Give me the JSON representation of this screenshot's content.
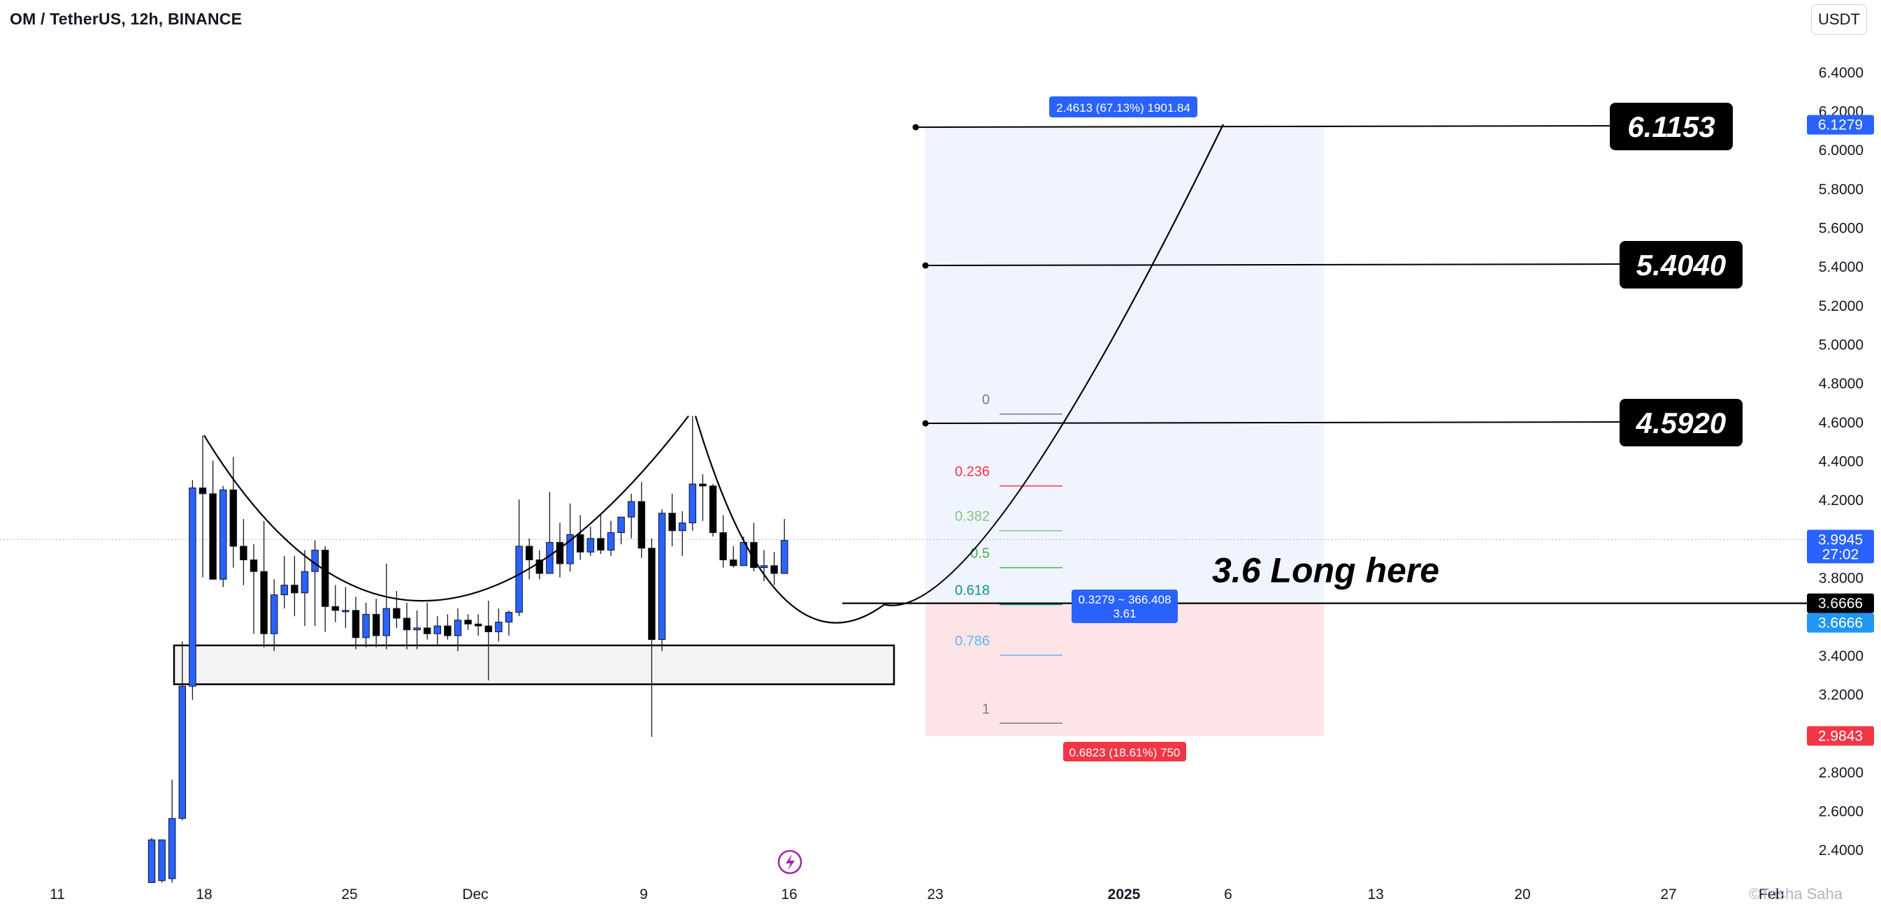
{
  "header": {
    "symbol": "OM / TetherUS, 12h, BINANCE",
    "currency": "USDT"
  },
  "watermark": "©Trisha Saha",
  "chart_data": {
    "type": "candlestick",
    "title": "OM / TetherUS, 12h, BINANCE",
    "ylim": [
      2.3,
      6.5
    ],
    "price_ticks": [
      "6.4000",
      "6.2000",
      "6.0000",
      "5.8000",
      "5.6000",
      "5.4000",
      "5.2000",
      "5.0000",
      "4.8000",
      "4.6000",
      "4.4000",
      "4.2000",
      "3.8000",
      "3.4000",
      "3.2000",
      "2.8000",
      "2.6000",
      "2.4000"
    ],
    "date_ticks": [
      "11",
      "18",
      "25",
      "Dec",
      "9",
      "16",
      "23",
      "2025",
      "6",
      "13",
      "20",
      "27",
      "Feb"
    ],
    "price_labels": [
      {
        "value": 6.1279,
        "text": "6.1279",
        "color": "#2962ff"
      },
      {
        "value": 3.9945,
        "text": "3.9945",
        "sub": "27:02",
        "color": "#2962ff"
      },
      {
        "value": 3.6666,
        "text": "3.6666",
        "color": "#000000"
      },
      {
        "value": 3.6666,
        "text": "3.6666",
        "color": "#2196f3"
      },
      {
        "value": 2.9843,
        "text": "2.9843",
        "color": "#f23645"
      }
    ],
    "candles": [
      {
        "o": 2.23,
        "h": 2.46,
        "l": 2.23,
        "c": 2.45
      },
      {
        "o": 2.24,
        "h": 2.45,
        "l": 2.23,
        "c": 2.45
      },
      {
        "o": 2.25,
        "h": 2.76,
        "l": 2.23,
        "c": 2.56
      },
      {
        "o": 2.56,
        "h": 3.47,
        "l": 2.55,
        "c": 3.24
      },
      {
        "o": 3.24,
        "h": 4.3,
        "l": 3.17,
        "c": 4.26
      },
      {
        "o": 4.26,
        "h": 4.53,
        "l": 3.8,
        "c": 4.23
      },
      {
        "o": 4.23,
        "h": 4.4,
        "l": 3.8,
        "c": 3.79
      },
      {
        "o": 3.79,
        "h": 4.27,
        "l": 3.75,
        "c": 4.25
      },
      {
        "o": 4.25,
        "h": 4.42,
        "l": 3.85,
        "c": 3.96
      },
      {
        "o": 3.96,
        "h": 4.1,
        "l": 3.76,
        "c": 3.89
      },
      {
        "o": 3.89,
        "h": 3.97,
        "l": 3.51,
        "c": 3.83
      },
      {
        "o": 3.83,
        "h": 4.09,
        "l": 3.44,
        "c": 3.51
      },
      {
        "o": 3.51,
        "h": 3.79,
        "l": 3.42,
        "c": 3.71
      },
      {
        "o": 3.71,
        "h": 3.91,
        "l": 3.64,
        "c": 3.76
      },
      {
        "o": 3.76,
        "h": 3.91,
        "l": 3.6,
        "c": 3.72
      },
      {
        "o": 3.72,
        "h": 3.94,
        "l": 3.55,
        "c": 3.83
      },
      {
        "o": 3.83,
        "h": 3.99,
        "l": 3.55,
        "c": 3.94
      },
      {
        "o": 3.94,
        "h": 3.96,
        "l": 3.52,
        "c": 3.65
      },
      {
        "o": 3.65,
        "h": 3.76,
        "l": 3.57,
        "c": 3.63
      },
      {
        "o": 3.63,
        "h": 3.75,
        "l": 3.54,
        "c": 3.63
      },
      {
        "o": 3.63,
        "h": 3.7,
        "l": 3.43,
        "c": 3.49
      },
      {
        "o": 3.49,
        "h": 3.67,
        "l": 3.44,
        "c": 3.61
      },
      {
        "o": 3.61,
        "h": 3.69,
        "l": 3.44,
        "c": 3.5
      },
      {
        "o": 3.5,
        "h": 3.87,
        "l": 3.43,
        "c": 3.64
      },
      {
        "o": 3.64,
        "h": 3.73,
        "l": 3.54,
        "c": 3.59
      },
      {
        "o": 3.59,
        "h": 3.67,
        "l": 3.43,
        "c": 3.53
      },
      {
        "o": 3.53,
        "h": 3.63,
        "l": 3.43,
        "c": 3.54
      },
      {
        "o": 3.54,
        "h": 3.67,
        "l": 3.48,
        "c": 3.51
      },
      {
        "o": 3.51,
        "h": 3.6,
        "l": 3.45,
        "c": 3.55
      },
      {
        "o": 3.55,
        "h": 3.61,
        "l": 3.48,
        "c": 3.5
      },
      {
        "o": 3.5,
        "h": 3.64,
        "l": 3.42,
        "c": 3.58
      },
      {
        "o": 3.58,
        "h": 3.61,
        "l": 3.53,
        "c": 3.56
      },
      {
        "o": 3.56,
        "h": 3.61,
        "l": 3.5,
        "c": 3.55
      },
      {
        "o": 3.55,
        "h": 3.68,
        "l": 3.27,
        "c": 3.52
      },
      {
        "o": 3.52,
        "h": 3.64,
        "l": 3.47,
        "c": 3.57
      },
      {
        "o": 3.57,
        "h": 3.63,
        "l": 3.5,
        "c": 3.62
      },
      {
        "o": 3.62,
        "h": 4.2,
        "l": 3.6,
        "c": 3.96
      },
      {
        "o": 3.96,
        "h": 4.0,
        "l": 3.79,
        "c": 3.89
      },
      {
        "o": 3.89,
        "h": 3.94,
        "l": 3.79,
        "c": 3.82
      },
      {
        "o": 3.82,
        "h": 4.24,
        "l": 3.82,
        "c": 3.98
      },
      {
        "o": 3.98,
        "h": 4.08,
        "l": 3.8,
        "c": 3.87
      },
      {
        "o": 3.87,
        "h": 4.18,
        "l": 3.83,
        "c": 4.02
      },
      {
        "o": 4.02,
        "h": 4.12,
        "l": 3.89,
        "c": 3.93
      },
      {
        "o": 3.93,
        "h": 4.06,
        "l": 3.91,
        "c": 4.0
      },
      {
        "o": 4.0,
        "h": 4.13,
        "l": 3.92,
        "c": 3.94
      },
      {
        "o": 3.94,
        "h": 4.09,
        "l": 3.91,
        "c": 4.03
      },
      {
        "o": 4.03,
        "h": 4.1,
        "l": 3.97,
        "c": 4.11
      },
      {
        "o": 4.11,
        "h": 4.23,
        "l": 4.0,
        "c": 4.19
      },
      {
        "o": 4.19,
        "h": 4.29,
        "l": 3.9,
        "c": 3.95
      },
      {
        "o": 3.95,
        "h": 4.0,
        "l": 2.98,
        "c": 3.48
      },
      {
        "o": 3.48,
        "h": 4.15,
        "l": 3.42,
        "c": 4.13
      },
      {
        "o": 4.13,
        "h": 4.23,
        "l": 3.96,
        "c": 4.04
      },
      {
        "o": 4.04,
        "h": 4.14,
        "l": 3.91,
        "c": 4.08
      },
      {
        "o": 4.08,
        "h": 4.63,
        "l": 4.04,
        "c": 4.28
      },
      {
        "o": 4.28,
        "h": 4.33,
        "l": 4.09,
        "c": 4.27
      },
      {
        "o": 4.27,
        "h": 4.28,
        "l": 4.01,
        "c": 4.03
      },
      {
        "o": 4.03,
        "h": 4.12,
        "l": 3.85,
        "c": 3.89
      },
      {
        "o": 3.89,
        "h": 3.96,
        "l": 3.85,
        "c": 3.86
      },
      {
        "o": 3.86,
        "h": 4.01,
        "l": 3.88,
        "c": 3.98
      },
      {
        "o": 3.98,
        "h": 4.08,
        "l": 3.83,
        "c": 3.85
      },
      {
        "o": 3.85,
        "h": 3.94,
        "l": 3.78,
        "c": 3.86
      },
      {
        "o": 3.86,
        "h": 3.93,
        "l": 3.76,
        "c": 3.82
      },
      {
        "o": 3.82,
        "h": 4.1,
        "l": 3.83,
        "c": 3.99
      }
    ],
    "drawings": {
      "targets": [
        "6.1153",
        "5.4040",
        "4.5920"
      ],
      "entry_note": "3.6 Long here",
      "target_box_label": "2.4613 (67.13%) 1901.84",
      "entry_box_label_1": "0.3279 ~ 366.408",
      "entry_box_label_2": "3.61",
      "stop_box_label": "0.6823 (18.61%) 750",
      "fib_levels": [
        {
          "label": "0",
          "color": "#787b86"
        },
        {
          "label": "0.236",
          "color": "#f23645"
        },
        {
          "label": "0.382",
          "color": "#81c784"
        },
        {
          "label": "0.5",
          "color": "#4caf50"
        },
        {
          "label": "0.618",
          "color": "#089981"
        },
        {
          "label": "0.786",
          "color": "#64b5f6"
        },
        {
          "label": "1",
          "color": "#787b86"
        }
      ]
    },
    "colors": {
      "up": "#2962ff",
      "down": "#000000",
      "target_zone": "#2962ff",
      "stop_zone": "#f23645"
    }
  }
}
